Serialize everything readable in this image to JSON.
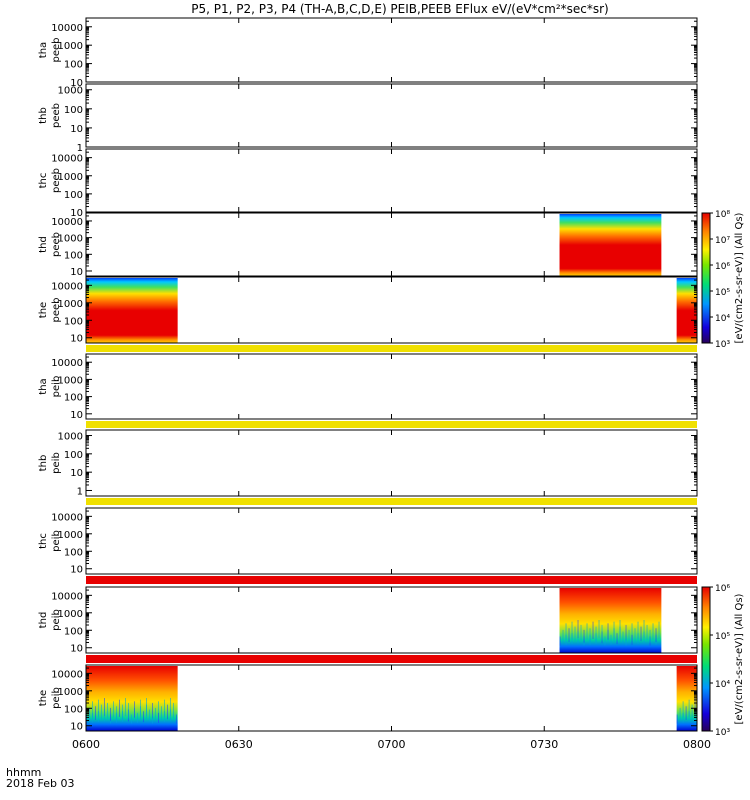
{
  "chart_data": {
    "type": "heatmap",
    "title": "P5, P1, P2, P3, P4 (TH-A,B,C,D,E) PEIB,PEEB EFlux eV/(eV*cm²*sec*sr)",
    "x_ticks": [
      "0600",
      "0630",
      "0700",
      "0730",
      "0800"
    ],
    "x_range_minutes": [
      360,
      480
    ],
    "x_axis_label": "hhmm",
    "date_label": "2018 Feb 03",
    "panels": [
      {
        "id": "tha-peeb",
        "label": [
          "tha",
          "peeb"
        ],
        "y_log": true,
        "y_range": [
          10,
          30000
        ],
        "y_ticks": [
          "10",
          "100",
          "1000",
          "10000"
        ],
        "data": []
      },
      {
        "id": "thb-peeb",
        "label": [
          "thb",
          "peeb"
        ],
        "y_log": true,
        "y_range": [
          1,
          2000
        ],
        "y_ticks": [
          "1",
          "10",
          "100",
          "1000"
        ],
        "data": []
      },
      {
        "id": "thc-peeb",
        "label": [
          "thc",
          "peeb"
        ],
        "y_log": true,
        "y_range": [
          10,
          30000
        ],
        "y_ticks": [
          "10",
          "100",
          "1000",
          "10000"
        ],
        "data": []
      },
      {
        "id": "thd-peeb",
        "label": [
          "thd",
          "peeb"
        ],
        "y_log": true,
        "y_range": [
          5,
          30000
        ],
        "y_ticks": [
          "10",
          "100",
          "1000",
          "10000"
        ],
        "data": [
          {
            "t0": 453,
            "t1": 473,
            "kind": "electron"
          }
        ]
      },
      {
        "id": "the-peeb",
        "label": [
          "the",
          "peeb"
        ],
        "y_log": true,
        "y_range": [
          5,
          30000
        ],
        "y_ticks": [
          "10",
          "100",
          "1000",
          "10000"
        ],
        "data": [
          {
            "t0": 360,
            "t1": 378,
            "kind": "electron"
          },
          {
            "t0": 476,
            "t1": 480,
            "kind": "electron"
          }
        ]
      },
      {
        "id": "tha-peib",
        "label": [
          "tha",
          "peib"
        ],
        "y_log": true,
        "y_range": [
          5,
          30000
        ],
        "y_ticks": [
          "10",
          "100",
          "1000",
          "10000"
        ],
        "data": []
      },
      {
        "id": "thb-peib",
        "label": [
          "thb",
          "peib"
        ],
        "y_log": true,
        "y_range": [
          0.5,
          2000
        ],
        "y_ticks": [
          "1",
          "10",
          "100",
          "1000"
        ],
        "data": []
      },
      {
        "id": "thc-peib",
        "label": [
          "thc",
          "peib"
        ],
        "y_log": true,
        "y_range": [
          5,
          30000
        ],
        "y_ticks": [
          "10",
          "100",
          "1000",
          "10000"
        ],
        "data": []
      },
      {
        "id": "thd-peib",
        "label": [
          "thd",
          "peib"
        ],
        "y_log": true,
        "y_range": [
          5,
          30000
        ],
        "y_ticks": [
          "10",
          "100",
          "1000",
          "10000"
        ],
        "data": [
          {
            "t0": 453,
            "t1": 473,
            "kind": "ion"
          }
        ]
      },
      {
        "id": "the-peib",
        "label": [
          "the",
          "peib"
        ],
        "y_log": true,
        "y_range": [
          5,
          30000
        ],
        "y_ticks": [
          "10",
          "100",
          "1000",
          "10000"
        ],
        "data": [
          {
            "t0": 360,
            "t1": 378,
            "kind": "ion"
          },
          {
            "t0": 476,
            "t1": 480,
            "kind": "ion"
          }
        ]
      }
    ],
    "colorbars": [
      {
        "id": "peeb-colorbar",
        "label": "[eV/(cm2-s-sr-eV)] (All Qs)",
        "range_log10": [
          3,
          8
        ],
        "ticks": [
          "10³",
          "10⁴",
          "10⁵",
          "10⁶",
          "10⁷",
          "10⁸"
        ]
      },
      {
        "id": "peib-colorbar",
        "label": "[eV/(cm2-s-sr-eV)] (All Qs)",
        "range_log10": [
          3,
          6
        ],
        "ticks": [
          "10³",
          "10⁴",
          "10⁵",
          "10⁶"
        ]
      }
    ]
  }
}
